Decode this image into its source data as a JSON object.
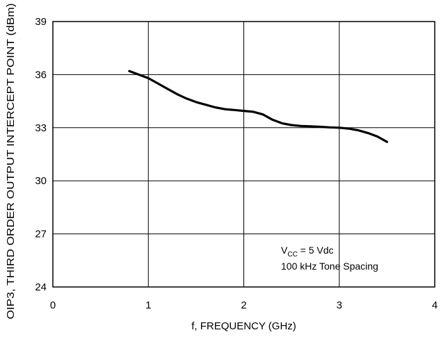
{
  "chart_data": {
    "type": "line",
    "title": "",
    "xlabel": "f, FREQUENCY (GHz)",
    "ylabel": "OIP3, THIRD ORDER OUTPUT INTERCEPT POINT (dBm)",
    "xlim": [
      0,
      4
    ],
    "ylim": [
      24,
      39
    ],
    "x_ticks": [
      0,
      1,
      2,
      3,
      4
    ],
    "y_ticks": [
      24,
      27,
      30,
      33,
      36,
      39
    ],
    "grid": true,
    "legend": "none",
    "annotations": [
      "V CC = 5 Vdc",
      "100 kHz Tone Spacing"
    ],
    "annotation_parts": {
      "vcc_main": "V",
      "vcc_sub": "CC",
      "vcc_rest": " = 5 Vdc",
      "spacing": "100 kHz Tone Spacing"
    },
    "series": [
      {
        "x": [
          0.8,
          0.9,
          1.0,
          1.1,
          1.2,
          1.3,
          1.4,
          1.5,
          1.6,
          1.7,
          1.8,
          1.9,
          2.0,
          2.1,
          2.2,
          2.3,
          2.4,
          2.5,
          2.6,
          2.7,
          2.8,
          2.9,
          3.0,
          3.1,
          3.2,
          3.3,
          3.4,
          3.5
        ],
        "y": [
          36.2,
          36.0,
          35.8,
          35.5,
          35.2,
          34.9,
          34.65,
          34.45,
          34.3,
          34.15,
          34.05,
          34.0,
          33.95,
          33.9,
          33.75,
          33.45,
          33.25,
          33.15,
          33.1,
          33.08,
          33.05,
          33.02,
          33.0,
          32.95,
          32.85,
          32.7,
          32.5,
          32.2
        ]
      }
    ]
  }
}
